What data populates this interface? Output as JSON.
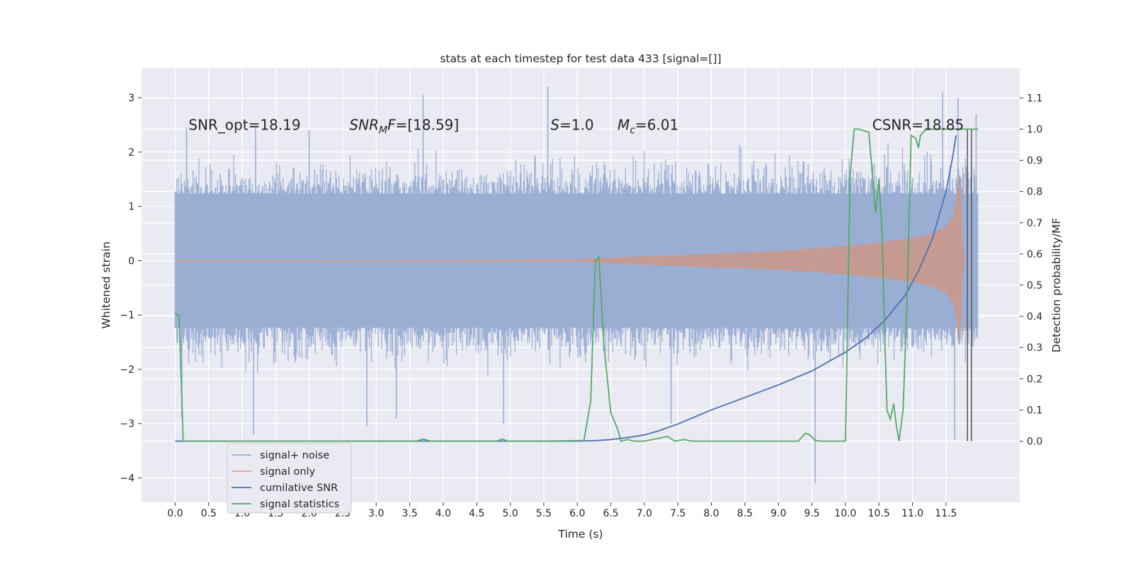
{
  "chart_data": {
    "type": "line",
    "title": "stats at each timestep for test data 433 [signal=[]]",
    "xlabel": "Time (s)",
    "ylabel": "Whitened strain",
    "y2label": "Detection probability/MF",
    "xlim": [
      -0.5,
      12.6
    ],
    "ylim": [
      -4.45,
      3.55
    ],
    "y2lim": [
      -0.196,
      1.196
    ],
    "x_ticks": [
      0.0,
      0.5,
      1.0,
      1.5,
      2.0,
      2.5,
      3.0,
      3.5,
      4.0,
      4.5,
      5.0,
      5.5,
      6.0,
      6.5,
      7.0,
      7.5,
      8.0,
      8.5,
      9.0,
      9.5,
      10.0,
      10.5,
      11.0,
      11.5
    ],
    "x_tick_labels": [
      "0.0",
      "0.5",
      "1.0",
      "1.5",
      "2.0",
      "2.5",
      "3.0",
      "3.5",
      "4.0",
      "4.5",
      "5.0",
      "5.5",
      "6.0",
      "6.5",
      "7.0",
      "7.5",
      "8.0",
      "8.5",
      "9.0",
      "9.5",
      "10.0",
      "10.5",
      "11.0",
      "11.5"
    ],
    "y_ticks": [
      -4,
      -3,
      -2,
      -1,
      0,
      1,
      2,
      3
    ],
    "y_tick_labels": [
      "−4",
      "−3",
      "−2",
      "−1",
      "0",
      "1",
      "2",
      "3"
    ],
    "y2_ticks": [
      0.0,
      0.1,
      0.2,
      0.3,
      0.4,
      0.5,
      0.6,
      0.7,
      0.8,
      0.9,
      1.0,
      1.1
    ],
    "y2_tick_labels": [
      "0.0",
      "0.1",
      "0.2",
      "0.3",
      "0.4",
      "0.5",
      "0.6",
      "0.7",
      "0.8",
      "0.9",
      "1.0",
      "1.1"
    ],
    "grid": true,
    "legend_position": "lower-left",
    "annotations": [
      {
        "x": 0.2,
        "y": 2.5,
        "text": "SNR_opt=18.19"
      },
      {
        "x": 2.6,
        "y": 2.5,
        "text": "SNR_MF=[18.59]",
        "base": "SNR",
        "sub": "M",
        "tail": "F=[18.59]"
      },
      {
        "x": 5.6,
        "y": 2.5,
        "text": "S=1.0",
        "base": "S",
        "tail": "=1.0"
      },
      {
        "x": 6.6,
        "y": 2.5,
        "text": "M_c=6.01",
        "base": "M",
        "sub": "c",
        "tail": "=6.01"
      },
      {
        "x": 10.4,
        "y": 2.5,
        "text": "CSNR=18.85"
      }
    ],
    "vertical_lines": [
      11.82,
      11.88
    ],
    "series": [
      {
        "name": "signal+ noise",
        "axis": "left",
        "color": "#9aaed4",
        "style": "noise-band",
        "x_range": [
          0.0,
          11.98
        ],
        "typical_envelope": 1.3,
        "peak_values": [
          {
            "x": 0.17,
            "y": 2.45
          },
          {
            "x": 1.2,
            "y": 2.45
          },
          {
            "x": 2.0,
            "y": 2.4
          },
          {
            "x": 3.7,
            "y": 3.05
          },
          {
            "x": 5.56,
            "y": 3.2
          },
          {
            "x": 11.45,
            "y": 3.1
          },
          {
            "x": 11.68,
            "y": 3.0
          },
          {
            "x": 11.95,
            "y": 2.7
          },
          {
            "x": 0.1,
            "y": -2.9
          },
          {
            "x": 1.17,
            "y": -3.2
          },
          {
            "x": 2.86,
            "y": -3.05
          },
          {
            "x": 3.3,
            "y": -2.9
          },
          {
            "x": 4.9,
            "y": -3.0
          },
          {
            "x": 7.4,
            "y": -3.0
          },
          {
            "x": 9.55,
            "y": -4.1
          },
          {
            "x": 11.63,
            "y": -3.3
          }
        ]
      },
      {
        "name": "signal only",
        "axis": "left",
        "color": "#e0a48c",
        "style": "chirp-band",
        "envelope": [
          [
            0.0,
            0.0
          ],
          [
            6.0,
            0.02
          ],
          [
            6.5,
            0.05
          ],
          [
            7.0,
            0.08
          ],
          [
            7.5,
            0.1
          ],
          [
            8.0,
            0.13
          ],
          [
            8.5,
            0.15
          ],
          [
            9.0,
            0.18
          ],
          [
            9.5,
            0.22
          ],
          [
            10.0,
            0.27
          ],
          [
            10.5,
            0.33
          ],
          [
            11.0,
            0.42
          ],
          [
            11.3,
            0.5
          ],
          [
            11.5,
            0.63
          ],
          [
            11.6,
            0.8
          ],
          [
            11.65,
            1.1
          ],
          [
            11.7,
            1.6
          ],
          [
            11.72,
            1.5
          ],
          [
            11.75,
            0.3
          ],
          [
            11.78,
            0.0
          ]
        ]
      },
      {
        "name": "cumilative SNR",
        "axis": "right",
        "color": "#4c72b0",
        "x": [
          0.0,
          6.0,
          6.3,
          6.5,
          6.8,
          7.0,
          7.2,
          7.5,
          8.0,
          8.5,
          9.0,
          9.5,
          10.0,
          10.3,
          10.6,
          10.9,
          11.1,
          11.3,
          11.5,
          11.6,
          11.65
        ],
        "values": [
          0.0,
          0.0,
          0.002,
          0.005,
          0.013,
          0.02,
          0.032,
          0.055,
          0.1,
          0.14,
          0.18,
          0.225,
          0.285,
          0.33,
          0.39,
          0.47,
          0.55,
          0.65,
          0.8,
          0.91,
          0.98
        ]
      },
      {
        "name": "signal statistics",
        "axis": "right",
        "color": "#55a868",
        "x": [
          0.0,
          0.06,
          0.12,
          0.2,
          3.6,
          3.7,
          3.8,
          4.8,
          4.88,
          4.96,
          5.5,
          6.1,
          6.2,
          6.27,
          6.32,
          6.4,
          6.5,
          6.6,
          6.65,
          6.75,
          6.85,
          7.0,
          7.35,
          7.45,
          7.6,
          7.7,
          7.8,
          9.3,
          9.4,
          9.47,
          9.55,
          9.65,
          10.0,
          10.07,
          10.13,
          10.18,
          10.2,
          10.35,
          10.45,
          10.5,
          10.55,
          10.58,
          10.62,
          10.67,
          10.72,
          10.76,
          10.8,
          10.86,
          10.92,
          10.98,
          11.05,
          11.09,
          11.12,
          11.2,
          11.27,
          11.32,
          11.4,
          11.98
        ],
        "values": [
          0.41,
          0.4,
          0.0,
          0.0,
          0.0,
          0.007,
          0.0,
          0.0,
          0.007,
          0.0,
          0.0,
          0.002,
          0.13,
          0.58,
          0.59,
          0.3,
          0.09,
          0.04,
          0.0,
          0.005,
          0.0,
          0.0,
          0.015,
          0.0,
          0.005,
          0.0,
          0.0,
          0.0,
          0.025,
          0.02,
          0.002,
          0.0,
          0.0,
          0.85,
          1.0,
          1.0,
          1.0,
          0.99,
          0.73,
          0.84,
          0.65,
          0.38,
          0.1,
          0.07,
          0.12,
          0.05,
          0.0,
          0.1,
          0.45,
          0.98,
          0.97,
          0.94,
          0.98,
          1.0,
          1.0,
          1.0,
          1.0,
          1.0
        ]
      }
    ]
  }
}
